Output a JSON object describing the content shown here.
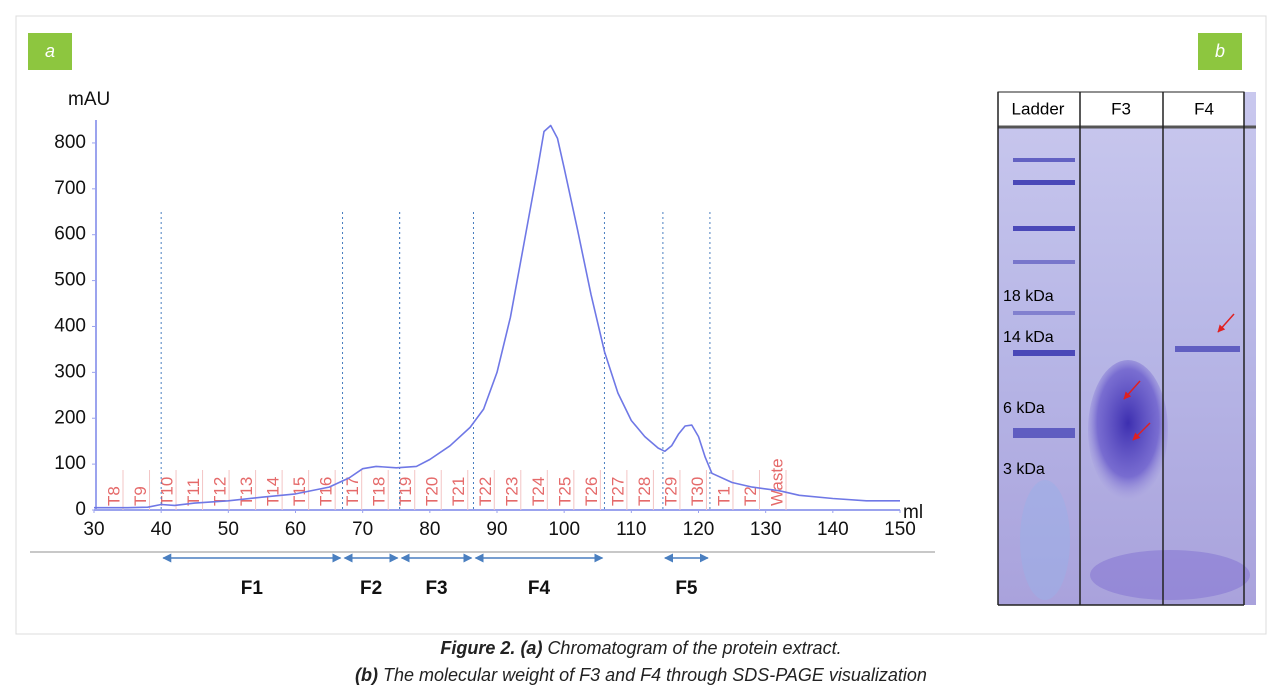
{
  "chart_data": {
    "type": "line",
    "panel_label": "a",
    "y_label": "mAU",
    "x_label": "ml",
    "xlim": [
      30,
      150
    ],
    "xticks": [
      30,
      40,
      50,
      60,
      70,
      80,
      90,
      100,
      110,
      120,
      130,
      140,
      150
    ],
    "ylim": [
      0,
      850
    ],
    "yticks": [
      0,
      100,
      200,
      300,
      400,
      500,
      600,
      700,
      800
    ],
    "grid": false,
    "x": [
      30,
      35,
      38,
      40,
      42,
      45,
      50,
      55,
      60,
      65,
      68,
      70,
      72,
      75,
      78,
      80,
      83,
      86,
      88,
      90,
      92,
      94,
      96,
      97,
      98,
      99,
      100,
      102,
      104,
      106,
      108,
      110,
      112,
      114,
      115,
      116,
      117,
      118,
      119,
      120,
      121,
      122,
      125,
      128,
      132,
      135,
      140,
      145,
      150
    ],
    "series": [
      {
        "color": "#6f78e6",
        "values": [
          5,
          5,
          6,
          12,
          10,
          15,
          20,
          28,
          35,
          50,
          70,
          90,
          95,
          92,
          95,
          110,
          140,
          180,
          220,
          300,
          420,
          580,
          740,
          825,
          838,
          810,
          745,
          610,
          470,
          345,
          255,
          195,
          160,
          135,
          128,
          140,
          165,
          183,
          185,
          160,
          115,
          80,
          60,
          50,
          42,
          32,
          25,
          20,
          20
        ]
      }
    ],
    "tube_labels": [
      "T8",
      "T9",
      "T10",
      "T11",
      "T12",
      "T13",
      "T14",
      "T15",
      "T16",
      "T17",
      "T18",
      "T19",
      "T20",
      "T21",
      "T22",
      "T23",
      "T24",
      "T25",
      "T26",
      "T27",
      "T28",
      "T29",
      "T30",
      "T1",
      "T2",
      "Waste"
    ],
    "fractions": [
      {
        "name": "F1",
        "start": 40,
        "end": 67
      },
      {
        "name": "F2",
        "start": 67,
        "end": 75.5
      },
      {
        "name": "F3",
        "start": 75.5,
        "end": 86.5
      },
      {
        "name": "F4",
        "start": 86.5,
        "end": 106
      },
      {
        "name": "F5",
        "start": 114.7,
        "end": 121.7
      }
    ]
  },
  "gel": {
    "panel_label": "b",
    "lanes": [
      "Ladder",
      "F3",
      "F4"
    ],
    "markers": [
      "18 kDa",
      "14 kDa",
      "6 kDa",
      "3 kDa"
    ]
  },
  "caption": {
    "line1": {
      "label": "Figure 2. (a)",
      "text": "Chromatogram of the protein extract."
    },
    "line2": {
      "label": "(b)",
      "text": "The molecular weight of F3 and F4 through SDS-PAGE visualization"
    }
  }
}
